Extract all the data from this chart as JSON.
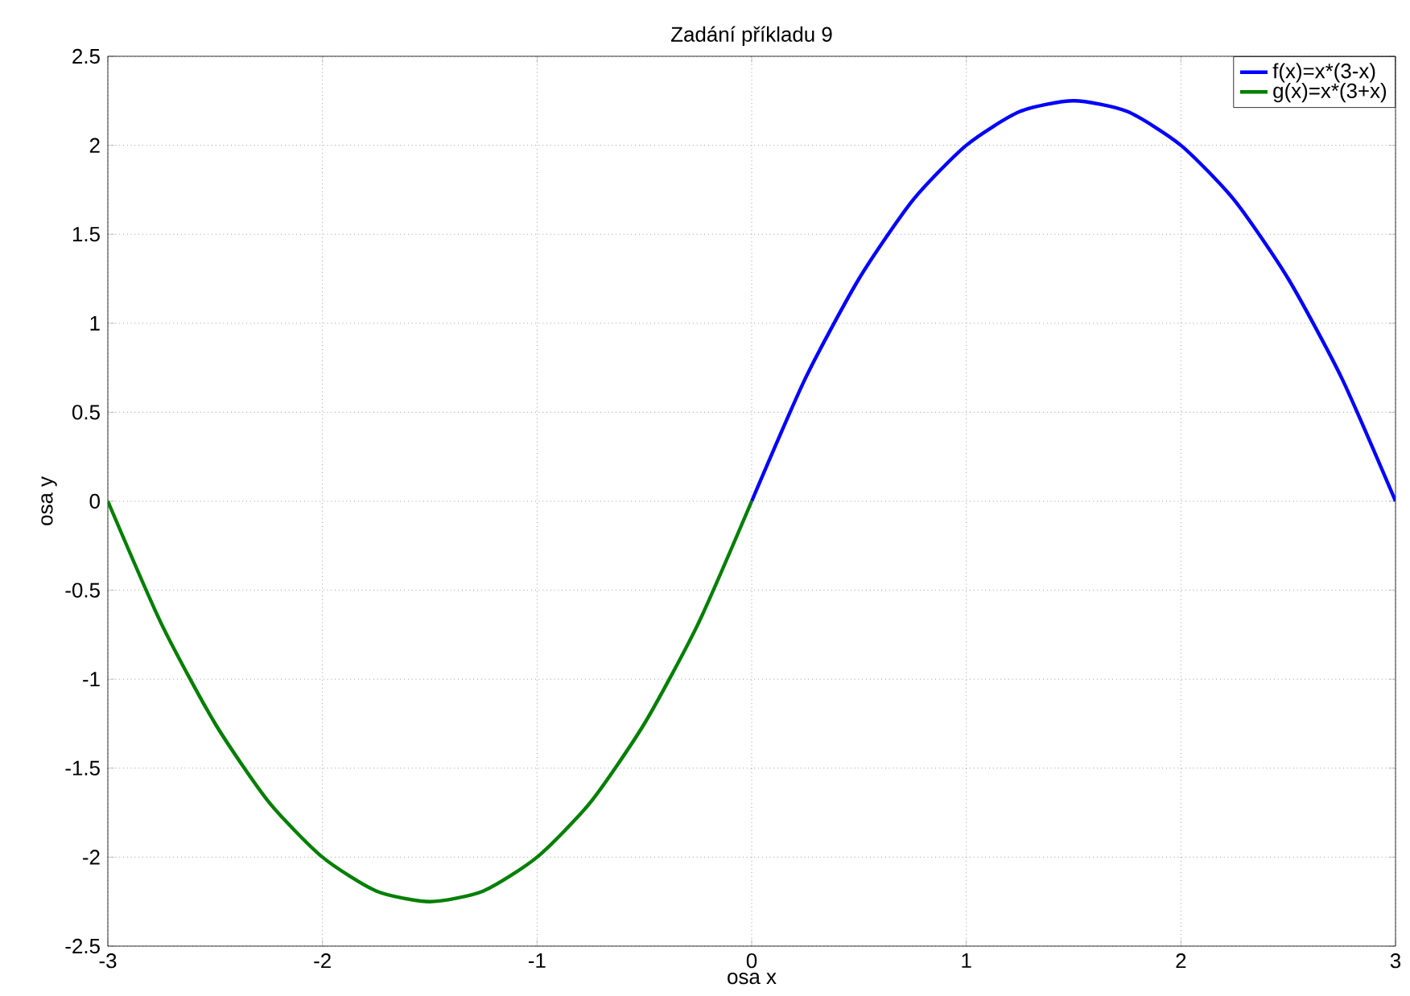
{
  "chart_data": {
    "type": "line",
    "title": "Zadání příkladu 9",
    "xlabel": "osa x",
    "ylabel": "osa y",
    "xlim": [
      -3,
      3
    ],
    "ylim": [
      -2.5,
      2.5
    ],
    "xticks": [
      -3,
      -2,
      -1,
      0,
      1,
      2,
      3
    ],
    "yticks": [
      -2.5,
      -2,
      -1.5,
      -1,
      -0.5,
      0,
      0.5,
      1,
      1.5,
      2,
      2.5
    ],
    "grid": true,
    "legend": "top right",
    "marker": "none",
    "line_style": "solid",
    "series": [
      {
        "name": "f(x)=x*(3-x)",
        "color": "#0000ff",
        "x": [
          0,
          0.25,
          0.5,
          0.75,
          1,
          1.25,
          1.5,
          1.75,
          2,
          2.25,
          2.5,
          2.75,
          3
        ],
        "values": [
          0,
          0.69,
          1.25,
          1.69,
          2,
          2.19,
          2.25,
          2.19,
          2,
          1.69,
          1.25,
          0.69,
          0
        ]
      },
      {
        "name": "g(x)=x*(3+x)",
        "color": "#007f00",
        "x": [
          -3,
          -2.75,
          -2.5,
          -2.25,
          -2,
          -1.75,
          -1.5,
          -1.25,
          -1,
          -0.75,
          -0.5,
          -0.25,
          0
        ],
        "values": [
          0,
          -0.69,
          -1.25,
          -1.69,
          -2,
          -2.19,
          -2.25,
          -2.19,
          -2,
          -1.69,
          -1.25,
          -0.69,
          0
        ]
      }
    ]
  }
}
